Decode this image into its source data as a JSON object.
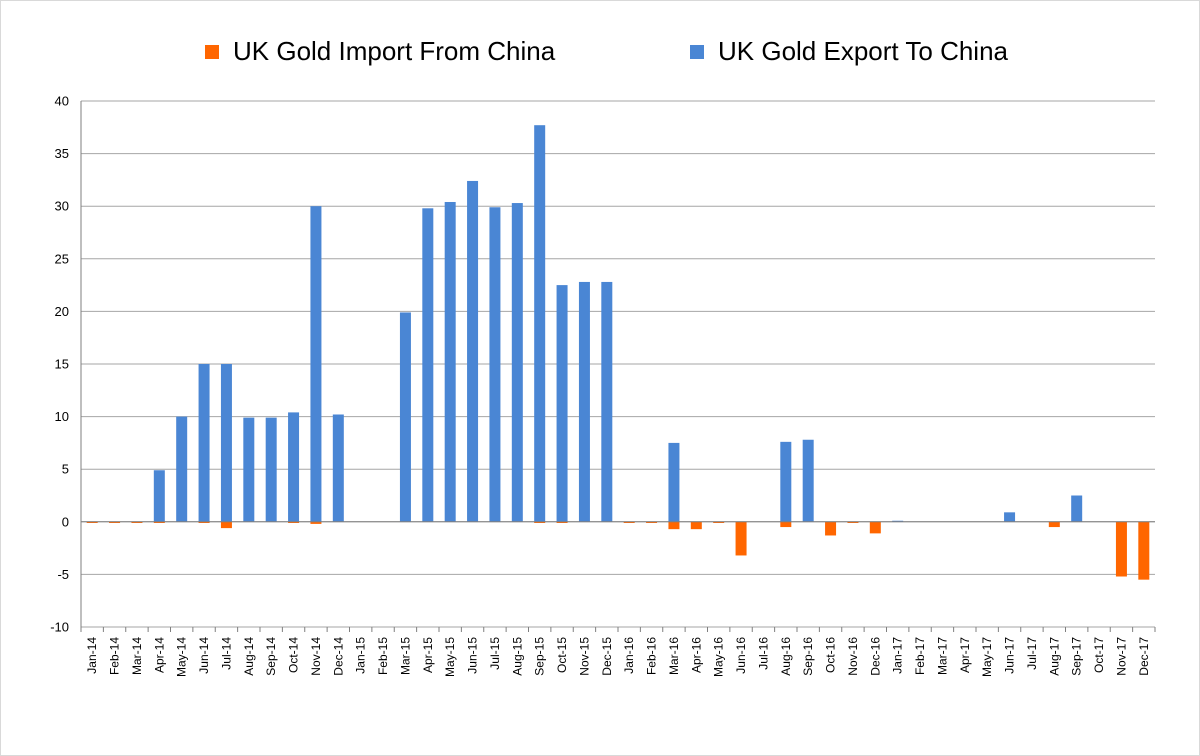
{
  "legend": {
    "import_label": "UK Gold Import From China",
    "export_label": "UK Gold Export To China"
  },
  "colors": {
    "import": "#ff6600",
    "export": "#4a86d4",
    "grid": "#a6a6a6",
    "axis": "#7f7f7f"
  },
  "chart_data": {
    "type": "bar",
    "title": "",
    "xlabel": "",
    "ylabel": "",
    "ylim": [
      -10,
      40
    ],
    "yticks": [
      40,
      35,
      30,
      25,
      20,
      15,
      10,
      5,
      0,
      -5,
      -10
    ],
    "grid": true,
    "legend_position": "top",
    "categories": [
      "Jan-14",
      "Feb-14",
      "Mar-14",
      "Apr-14",
      "May-14",
      "Jun-14",
      "Jul-14",
      "Aug-14",
      "Sep-14",
      "Oct-14",
      "Nov-14",
      "Dec-14",
      "Jan-15",
      "Feb-15",
      "Mar-15",
      "Apr-15",
      "May-15",
      "Jun-15",
      "Jul-15",
      "Aug-15",
      "Sep-15",
      "Oct-15",
      "Nov-15",
      "Dec-15",
      "Jan-16",
      "Feb-16",
      "Mar-16",
      "Apr-16",
      "May-16",
      "Jun-16",
      "Jul-16",
      "Aug-16",
      "Sep-16",
      "Oct-16",
      "Nov-16",
      "Dec-16",
      "Jan-17",
      "Feb-17",
      "Mar-17",
      "Apr-17",
      "May-17",
      "Jun-17",
      "Jul-17",
      "Aug-17",
      "Sep-17",
      "Oct-17",
      "Nov-17",
      "Dec-17"
    ],
    "series": [
      {
        "name": "UK Gold Import From China",
        "values": [
          -0.1,
          -0.1,
          -0.1,
          -0.1,
          0,
          -0.1,
          -0.6,
          0,
          0,
          -0.1,
          -0.2,
          0,
          0,
          0,
          0,
          0,
          0,
          0,
          0,
          0,
          -0.1,
          -0.1,
          0,
          0,
          -0.1,
          -0.1,
          -0.7,
          -0.7,
          -0.1,
          -3.2,
          0,
          -0.5,
          0,
          -1.3,
          -0.1,
          -1.1,
          0,
          0,
          0,
          0,
          0,
          0,
          0,
          -0.5,
          0,
          0,
          -5.2,
          -5.5
        ]
      },
      {
        "name": "UK Gold Export To China",
        "values": [
          0,
          0,
          0,
          4.9,
          10.0,
          15.0,
          15.0,
          9.9,
          9.9,
          10.4,
          30.0,
          10.2,
          0,
          0,
          19.9,
          29.8,
          30.4,
          32.4,
          29.9,
          30.3,
          37.7,
          22.5,
          22.8,
          22.8,
          0,
          0,
          7.5,
          0,
          0,
          0,
          0,
          7.6,
          7.8,
          0,
          0,
          0,
          0.1,
          0,
          0,
          0,
          0,
          0.9,
          0,
          0,
          2.5,
          0,
          0,
          0
        ]
      }
    ]
  }
}
